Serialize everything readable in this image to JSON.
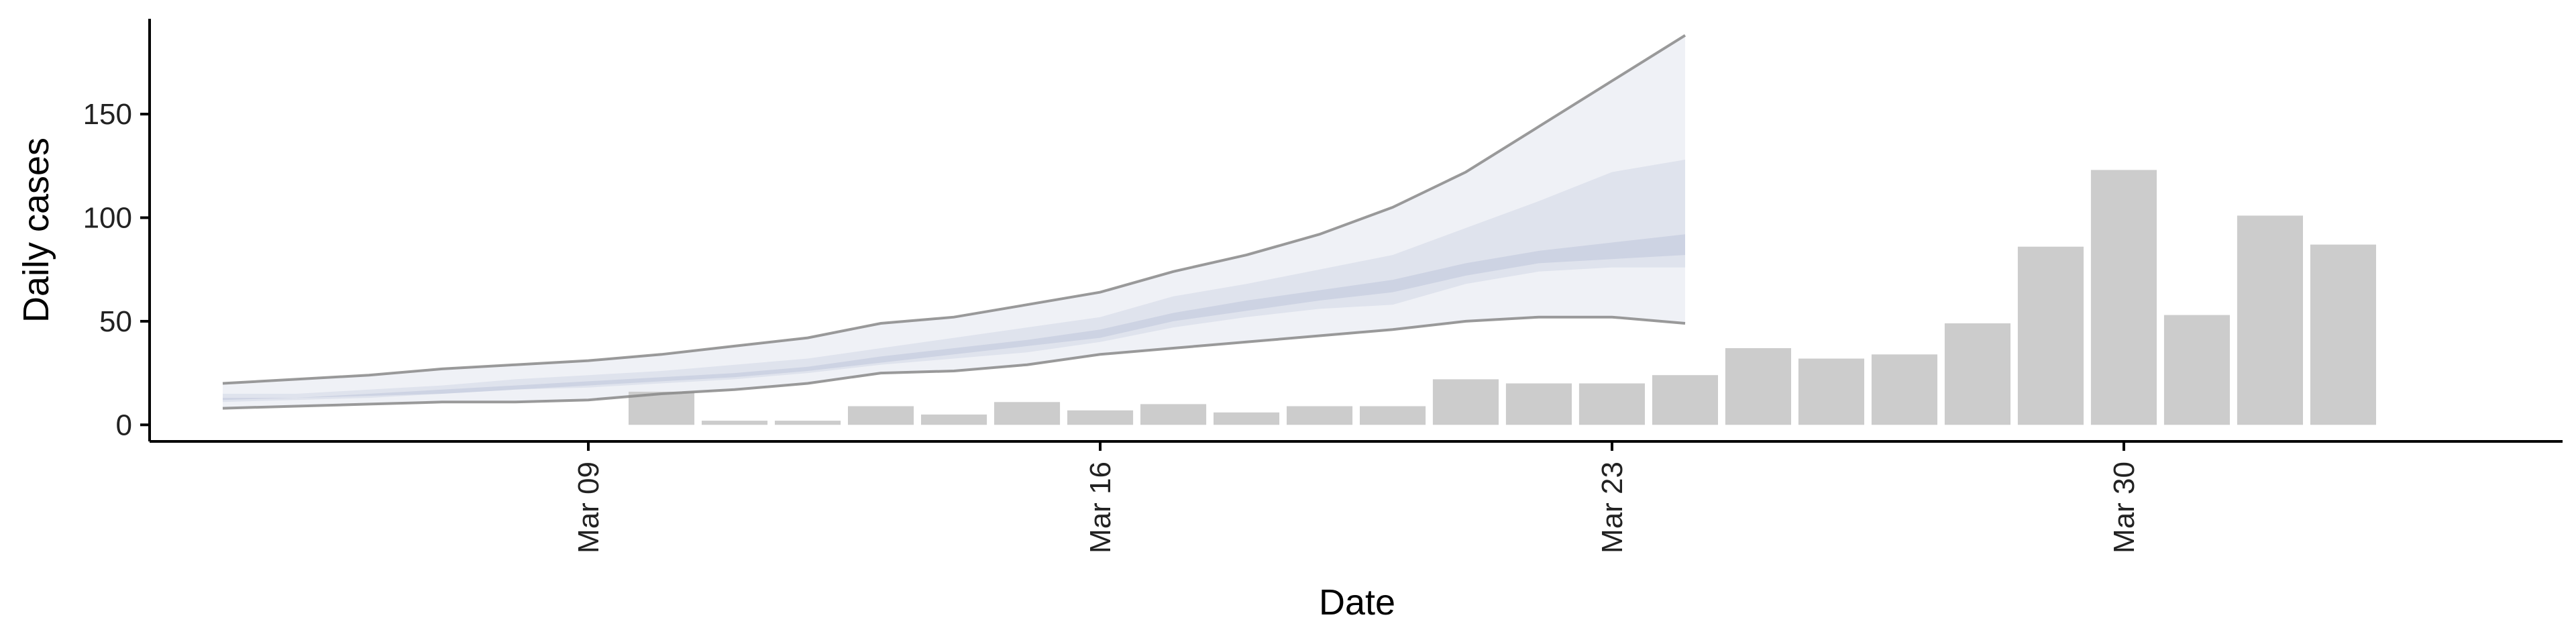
{
  "chart_data": {
    "type": "bar",
    "title": "",
    "xlabel": "Date",
    "ylabel": "Daily cases",
    "x_ticks": [
      {
        "date": "2020-03-09",
        "label": "Mar 09"
      },
      {
        "date": "2020-03-16",
        "label": "Mar 16"
      },
      {
        "date": "2020-03-23",
        "label": "Mar 23"
      },
      {
        "date": "2020-03-30",
        "label": "Mar 30"
      }
    ],
    "y_ticks": [
      0,
      50,
      100,
      150
    ],
    "xlim": [
      "2020-03-03",
      "2020-04-05"
    ],
    "ylim": [
      -8,
      196
    ],
    "grid": false,
    "legend": "none",
    "bars": {
      "color": "#cccccc",
      "points": [
        {
          "date": "2020-03-10",
          "value": 16
        },
        {
          "date": "2020-03-11",
          "value": 2
        },
        {
          "date": "2020-03-12",
          "value": 2
        },
        {
          "date": "2020-03-13",
          "value": 9
        },
        {
          "date": "2020-03-14",
          "value": 5
        },
        {
          "date": "2020-03-15",
          "value": 11
        },
        {
          "date": "2020-03-16",
          "value": 7
        },
        {
          "date": "2020-03-17",
          "value": 10
        },
        {
          "date": "2020-03-18",
          "value": 6
        },
        {
          "date": "2020-03-19",
          "value": 9
        },
        {
          "date": "2020-03-20",
          "value": 9
        },
        {
          "date": "2020-03-21",
          "value": 22
        },
        {
          "date": "2020-03-22",
          "value": 20
        },
        {
          "date": "2020-03-23",
          "value": 20
        },
        {
          "date": "2020-03-24",
          "value": 24
        },
        {
          "date": "2020-03-25",
          "value": 37
        },
        {
          "date": "2020-03-26",
          "value": 32
        },
        {
          "date": "2020-03-27",
          "value": 34
        },
        {
          "date": "2020-03-28",
          "value": 49
        },
        {
          "date": "2020-03-29",
          "value": 86
        },
        {
          "date": "2020-03-30",
          "value": 123
        },
        {
          "date": "2020-03-31",
          "value": 53
        },
        {
          "date": "2020-04-01",
          "value": 101
        },
        {
          "date": "2020-04-02",
          "value": 87
        }
      ]
    },
    "estimate": {
      "dates": [
        "2020-03-04",
        "2020-03-05",
        "2020-03-06",
        "2020-03-07",
        "2020-03-08",
        "2020-03-09",
        "2020-03-10",
        "2020-03-11",
        "2020-03-12",
        "2020-03-13",
        "2020-03-14",
        "2020-03-15",
        "2020-03-16",
        "2020-03-17",
        "2020-03-18",
        "2020-03-19",
        "2020-03-20",
        "2020-03-21",
        "2020-03-22",
        "2020-03-23",
        "2020-03-24"
      ],
      "outer_upper": [
        20,
        22,
        24,
        27,
        29,
        31,
        34,
        38,
        42,
        49,
        52,
        58,
        64,
        74,
        82,
        92,
        105,
        122,
        144,
        166,
        188
      ],
      "outer_lower": [
        8,
        9,
        10,
        11,
        11,
        12,
        15,
        17,
        20,
        25,
        26,
        29,
        34,
        37,
        40,
        43,
        46,
        50,
        52,
        52,
        49
      ],
      "mid_upper": [
        15,
        15,
        17,
        19,
        22,
        24,
        26,
        29,
        32,
        37,
        42,
        47,
        52,
        62,
        68,
        75,
        82,
        95,
        108,
        122,
        128
      ],
      "mid_lower": [
        11,
        12,
        13,
        15,
        17,
        18,
        20,
        22,
        25,
        29,
        32,
        35,
        40,
        47,
        52,
        56,
        58,
        68,
        74,
        76,
        76
      ],
      "inner_upper": [
        13,
        13,
        15,
        17,
        19,
        21,
        23,
        25,
        28,
        33,
        37,
        41,
        46,
        54,
        60,
        65,
        70,
        78,
        84,
        88,
        92
      ],
      "inner_lower": [
        12,
        13,
        14,
        15,
        17,
        19,
        21,
        23,
        26,
        30,
        34,
        38,
        42,
        50,
        55,
        60,
        64,
        72,
        78,
        80,
        82
      ],
      "band_color": "#b8bfd8",
      "line_color": "#888888"
    }
  }
}
